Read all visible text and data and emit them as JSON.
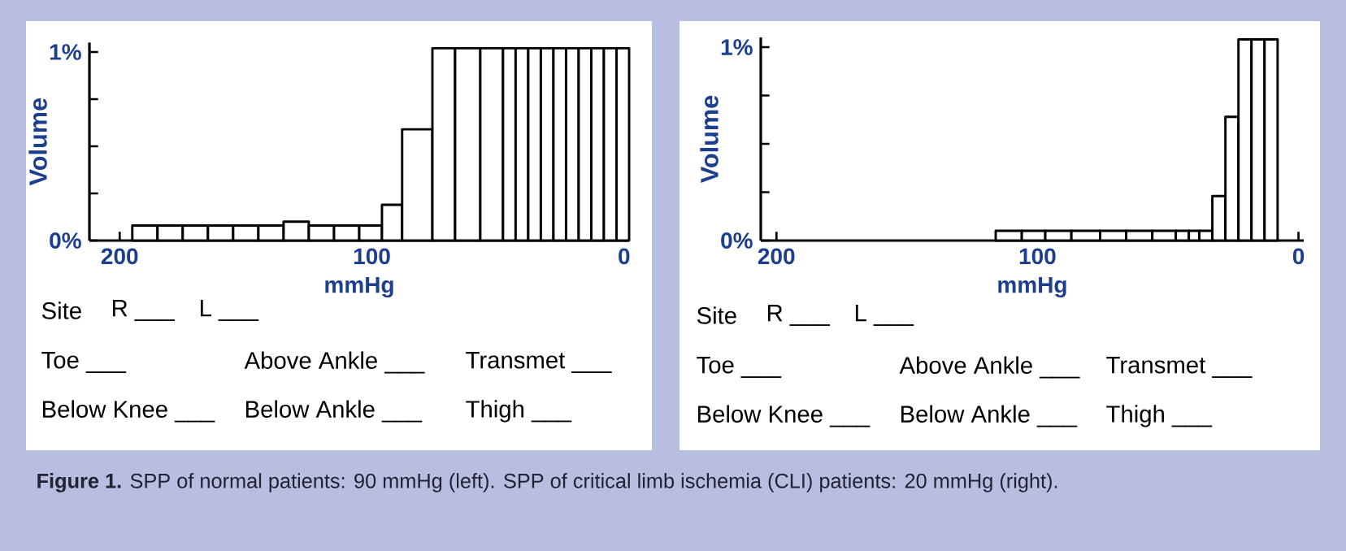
{
  "chart_data": [
    {
      "type": "histogram",
      "xlabel": "mmHg",
      "ylabel": "Volume",
      "color": "#ffffff",
      "bins": [
        195,
        185,
        175,
        165,
        155,
        145,
        135,
        125,
        115,
        105,
        96,
        88,
        76,
        67,
        57,
        48,
        43,
        38,
        33,
        28,
        23,
        18,
        13,
        8,
        3,
        -2
      ],
      "values": [
        0.08,
        0.08,
        0.08,
        0.08,
        0.08,
        0.08,
        0.1,
        0.08,
        0.08,
        0.08,
        0.19,
        0.59,
        1.02,
        1.02,
        1.02,
        1.02,
        1.02,
        1.02,
        1.02,
        1.02,
        1.02,
        1.02,
        1.02,
        1.02,
        1.02
      ],
      "xlim": [
        212,
        -2
      ],
      "xticks": [
        200,
        100,
        0
      ],
      "ylim": [
        0,
        1.05
      ],
      "yticks": [
        {
          "value": 0,
          "label": "0%"
        },
        {
          "value": 0.25,
          "label": null
        },
        {
          "value": 0.5,
          "label": null
        },
        {
          "value": 0.75,
          "label": null
        },
        {
          "value": 1,
          "label": "1%"
        }
      ],
      "annotations": [
        "Site",
        "R ___",
        "L ___",
        "Toe ___",
        "Above Ankle ___",
        "Transmet ___",
        "Below Knee ___",
        "Below Ankle ___",
        "Thigh ___",
        "**Figure 1.** SPP of normal patients: 90 mmHg (left). SPP of critical limb ischemia (CLI) patients: 20 mmHg (right)."
      ]
    },
    {
      "type": "histogram",
      "xlabel": "mmHg",
      "ylabel": "Volume",
      "color": "#ffffff",
      "bins": [
        116,
        106,
        97,
        87,
        76,
        66,
        56,
        47,
        42,
        38,
        33,
        28,
        23,
        18,
        13,
        8
      ],
      "values": [
        0.05,
        0.05,
        0.05,
        0.05,
        0.05,
        0.05,
        0.05,
        0.05,
        0.05,
        0.05,
        0.23,
        0.64,
        1.04,
        1.04,
        1.04
      ],
      "xlim": [
        206,
        -2
      ],
      "xticks": [
        200,
        100,
        0
      ],
      "ylim": [
        0,
        1.05
      ],
      "yticks": [
        {
          "value": 0,
          "label": "0%"
        },
        {
          "value": 0.25,
          "label": null
        },
        {
          "value": 0.5,
          "label": null
        },
        {
          "value": 0.75,
          "label": null
        },
        {
          "value": 1,
          "label": "1%"
        }
      ],
      "annotations": [
        "Site",
        "R ___",
        "L ___",
        "Toe ___",
        "Above Ankle ___",
        "Transmet ___",
        "Below Knee ___",
        "Below Ankle ___",
        "Thigh ___"
      ]
    }
  ]
}
